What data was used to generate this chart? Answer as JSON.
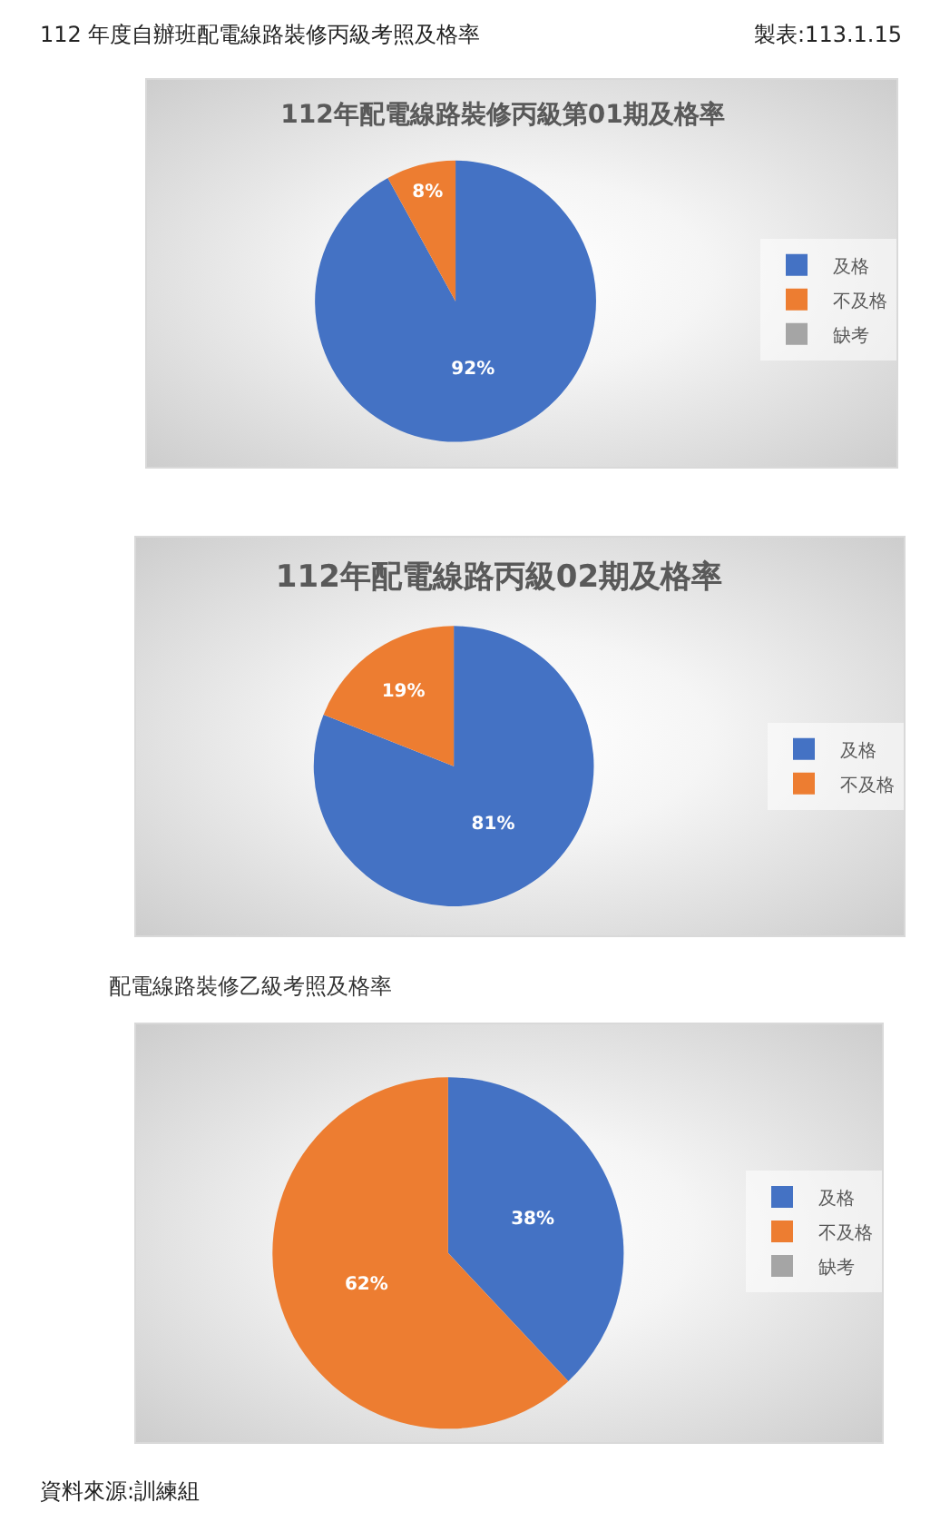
{
  "chart_data": [
    {
      "type": "pie",
      "title": "112年配電線路裝修丙級第01期及格率",
      "categories": [
        "及格",
        "不及格",
        "缺考"
      ],
      "values": [
        92,
        8,
        0
      ],
      "colors": [
        "#4472c4",
        "#ed7d31",
        "#a5a5a5"
      ],
      "value_labels": [
        "92%",
        "8%",
        null
      ],
      "legend": "right",
      "annotations": [
        "112 年度自辦班配電線路裝修丙級考照及格率",
        "製表:113.1.15"
      ]
    },
    {
      "type": "pie",
      "title": "112年配電線路丙級02期及格率",
      "categories": [
        "及格",
        "不及格"
      ],
      "values": [
        81,
        19
      ],
      "colors": [
        "#4472c4",
        "#ed7d31"
      ],
      "value_labels": [
        "81%",
        "19%"
      ],
      "legend": "right"
    },
    {
      "type": "pie",
      "title": "配電線路裝修乙級考照及格率",
      "categories": [
        "及格",
        "不及格",
        "缺考"
      ],
      "values": [
        38,
        62,
        0
      ],
      "colors": [
        "#4472c4",
        "#ed7d31",
        "#a5a5a5"
      ],
      "value_labels": [
        "38%",
        "62%",
        null
      ],
      "legend": "right",
      "annotations": [
        "資料來源:訓練組"
      ]
    }
  ]
}
